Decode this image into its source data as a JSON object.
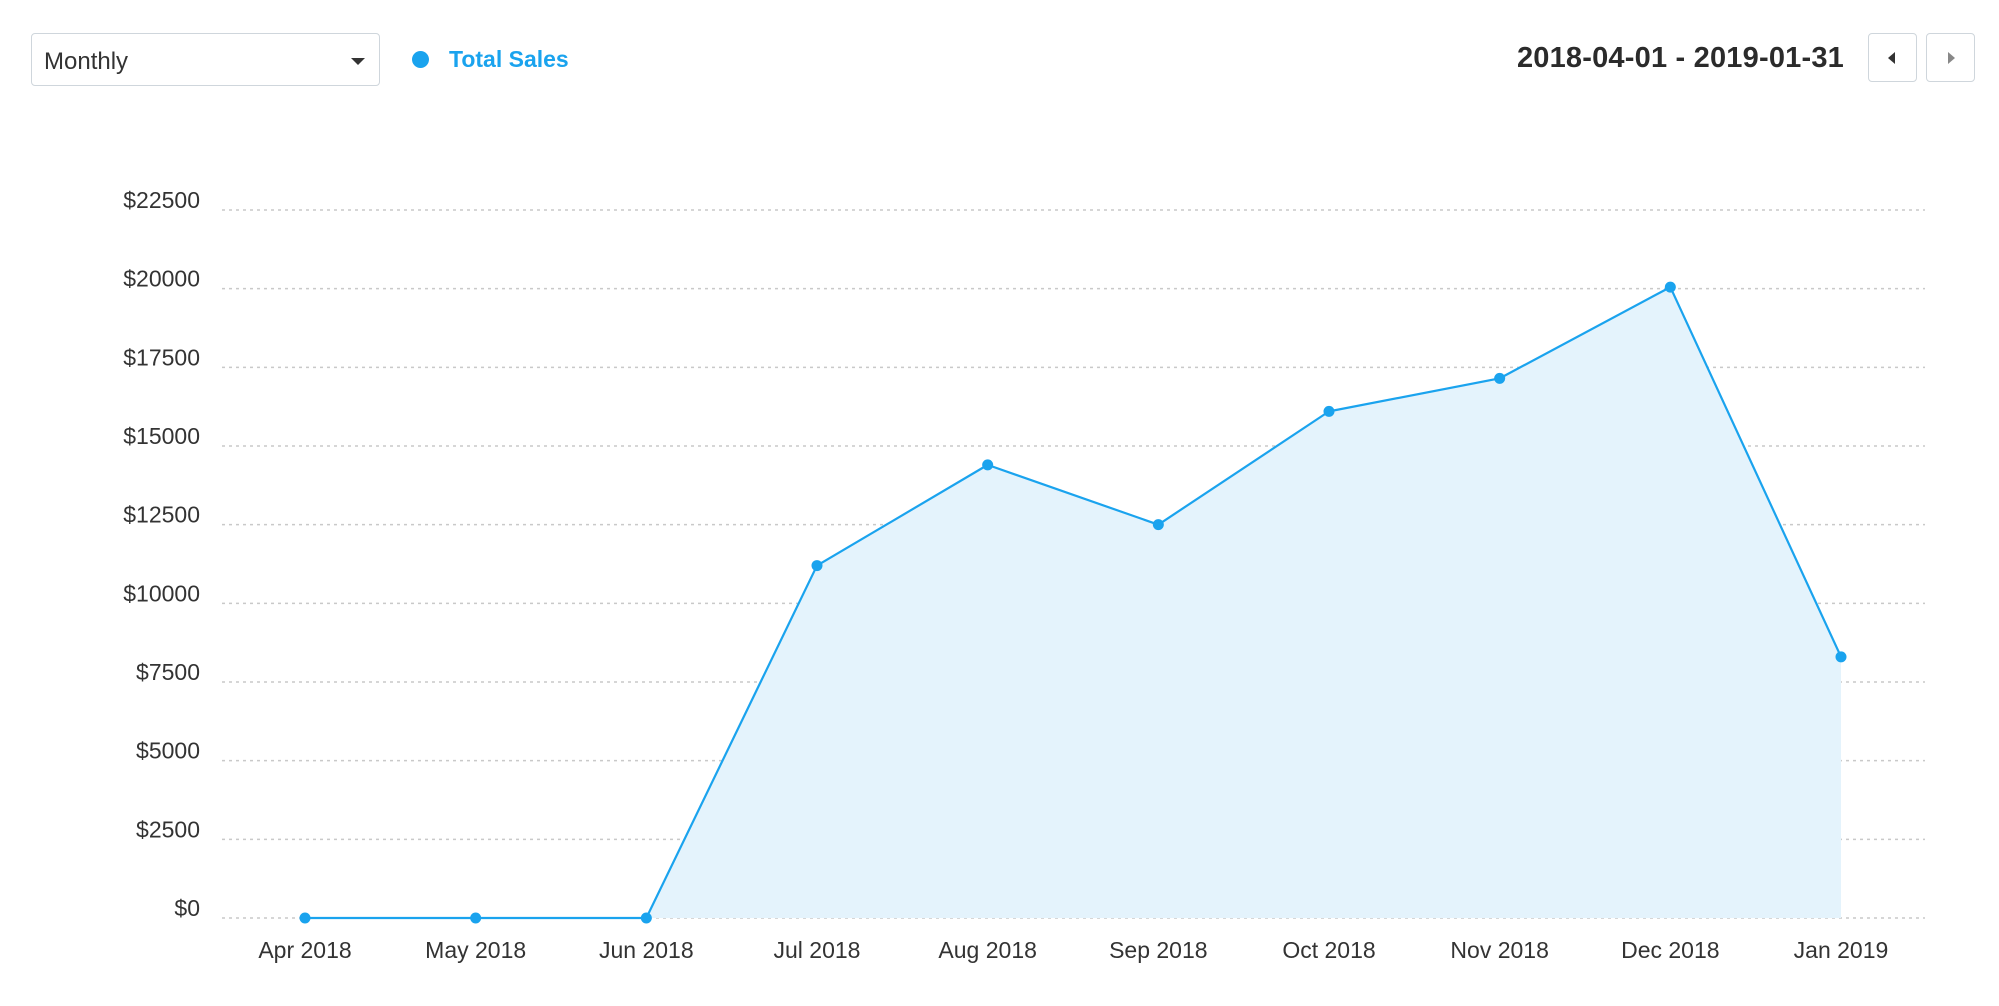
{
  "controls": {
    "period_select_value": "Monthly",
    "legend_label": "Total Sales",
    "date_range": "2018-04-01 - 2019-01-31"
  },
  "colors": {
    "series": "#1aa3ee",
    "fill": "#e4f3fc",
    "grid": "#c9c9c9",
    "legend_text": "#1aa3ee"
  },
  "icons": {
    "select_caret": "chevron-down-icon",
    "prev": "caret-left-icon",
    "next": "caret-right-icon"
  },
  "chart_data": {
    "type": "area",
    "categories": [
      "Apr 2018",
      "May 2018",
      "Jun 2018",
      "Jul 2018",
      "Aug 2018",
      "Sep 2018",
      "Oct 2018",
      "Nov 2018",
      "Dec 2018",
      "Jan 2019"
    ],
    "series": [
      {
        "name": "Total Sales",
        "values": [
          0,
          0,
          0,
          11200,
          14400,
          12500,
          16100,
          17150,
          20050,
          8300
        ]
      }
    ],
    "ylim": [
      0,
      22500
    ],
    "yticks": [
      0,
      2500,
      5000,
      7500,
      10000,
      12500,
      15000,
      17500,
      20000,
      22500
    ],
    "ytick_labels": [
      "$0",
      "$2500",
      "$5000",
      "$7500",
      "$10000",
      "$12500",
      "$15000",
      "$17500",
      "$20000",
      "$22500"
    ],
    "grid": true,
    "legend_position": "top-left"
  }
}
